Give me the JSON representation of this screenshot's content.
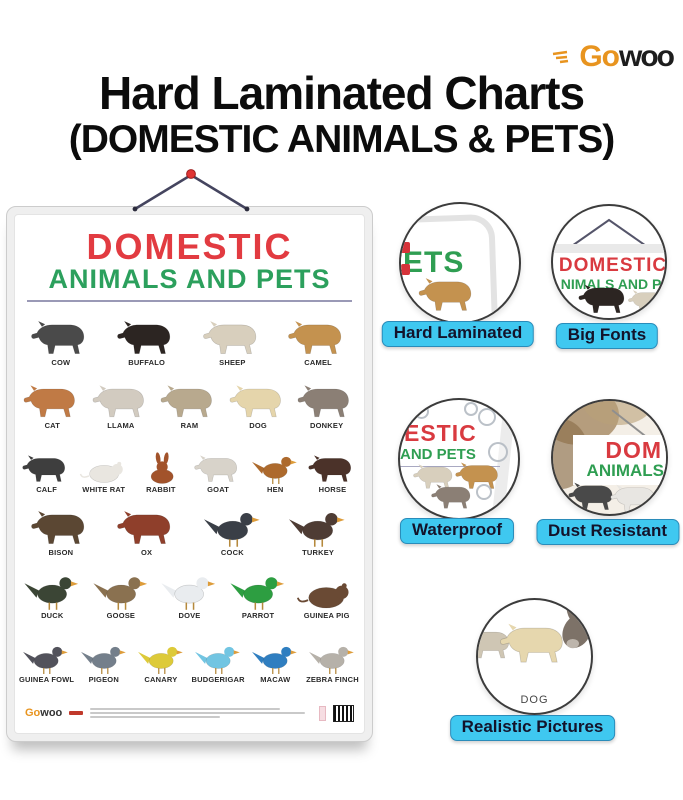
{
  "brand": {
    "logo_part1": "Go",
    "logo_part2": "woo"
  },
  "header": {
    "title_line1": "Hard Laminated Charts",
    "title_line2": "(DOMESTIC ANIMALS & PETS)"
  },
  "poster": {
    "heading_line1": "DOMESTIC",
    "heading_line2": "ANIMALS AND PETS",
    "footer_logo_part1": "Go",
    "footer_logo_part2": "woo",
    "rows": [
      [
        {
          "label": "COW",
          "type": "quadruped",
          "color": "#4a4a4a"
        },
        {
          "label": "BUFFALO",
          "type": "quadruped",
          "color": "#2c2522"
        },
        {
          "label": "SHEEP",
          "type": "quadruped",
          "color": "#d8cfbd"
        },
        {
          "label": "CAMEL",
          "type": "quadruped",
          "color": "#c4924f"
        }
      ],
      [
        {
          "label": "CAT",
          "type": "quadruped",
          "color": "#c07a45"
        },
        {
          "label": "LLAMA",
          "type": "quadruped",
          "color": "#d2cbc0"
        },
        {
          "label": "RAM",
          "type": "quadruped",
          "color": "#b8a98e"
        },
        {
          "label": "DOG",
          "type": "quadruped",
          "color": "#e5d5ab"
        },
        {
          "label": "DONKEY",
          "type": "quadruped",
          "color": "#8b7f75"
        }
      ],
      [
        {
          "label": "CALF",
          "type": "quadruped",
          "color": "#3e3e3e"
        },
        {
          "label": "WHITE RAT",
          "type": "rodent",
          "color": "#e9e6e0"
        },
        {
          "label": "RABBIT",
          "type": "rabbit",
          "color": "#a2532b"
        },
        {
          "label": "GOAT",
          "type": "quadruped",
          "color": "#d8d3ca"
        },
        {
          "label": "HEN",
          "type": "bird",
          "color": "#ad6a2d"
        },
        {
          "label": "HORSE",
          "type": "quadruped",
          "color": "#4b3229"
        }
      ],
      [
        {
          "label": "BISON",
          "type": "quadruped",
          "color": "#5b4733"
        },
        {
          "label": "OX",
          "type": "quadruped",
          "color": "#8f3f2b"
        },
        {
          "label": "COCK",
          "type": "bird",
          "color": "#3a3f47"
        },
        {
          "label": "TURKEY",
          "type": "bird",
          "color": "#4e3c34"
        }
      ],
      [
        {
          "label": "DUCK",
          "type": "bird",
          "color": "#3b4535"
        },
        {
          "label": "GOOSE",
          "type": "bird",
          "color": "#8a7150"
        },
        {
          "label": "DOVE",
          "type": "bird",
          "color": "#e9ecef"
        },
        {
          "label": "PARROT",
          "type": "bird",
          "color": "#2d9e41"
        },
        {
          "label": "GUINEA PIG",
          "type": "rodent",
          "color": "#6a4a34"
        }
      ],
      [
        {
          "label": "GUINEA FOWL",
          "type": "bird",
          "color": "#52525b"
        },
        {
          "label": "PIGEON",
          "type": "bird",
          "color": "#747f8b"
        },
        {
          "label": "CANARY",
          "type": "bird",
          "color": "#ddca39"
        },
        {
          "label": "BUDGERIGAR",
          "type": "bird",
          "color": "#72c5e2"
        },
        {
          "label": "MACAW",
          "type": "bird",
          "color": "#2f7ec0"
        },
        {
          "label": "ZEBRA FINCH",
          "type": "bird",
          "color": "#b6b1a9"
        }
      ]
    ]
  },
  "features": [
    {
      "label": "Hard Laminated",
      "preview": {
        "text": "ETS"
      }
    },
    {
      "label": "Big Fonts",
      "preview": {
        "line1": "DOMESTIC",
        "line2": "NIMALS AND P"
      }
    },
    {
      "label": "Waterproof",
      "preview": {
        "line1": "ESTIC",
        "line2": "AND PETS"
      }
    },
    {
      "label": "Dust Resistant",
      "preview": {
        "line1": "DOM",
        "line2": "ANIMALS"
      }
    },
    {
      "label": "Realistic Pictures",
      "preview": {
        "caption": "DOG"
      }
    }
  ],
  "colors": {
    "accent_red": "#e23b41",
    "accent_green": "#2ca05d",
    "label_bg": "#3fc8f0",
    "brand_orange": "#e8941f"
  }
}
